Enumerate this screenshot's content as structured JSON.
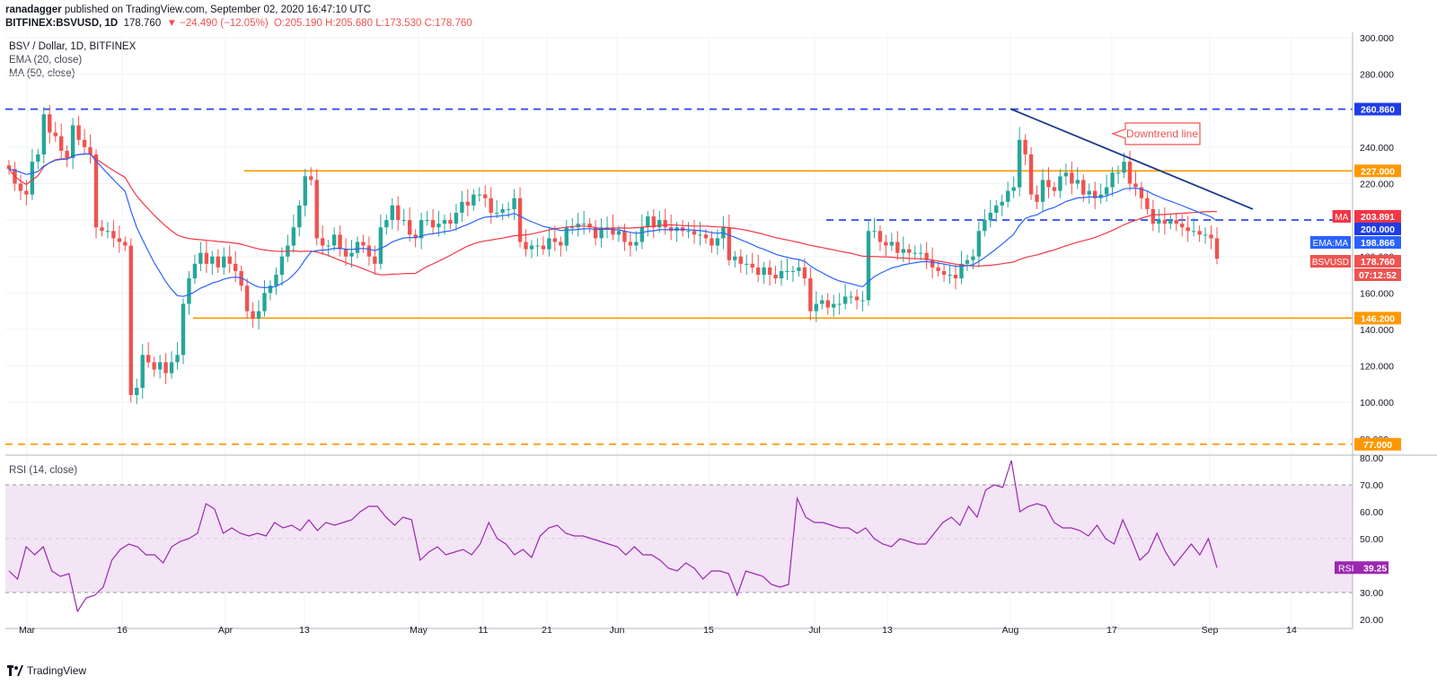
{
  "header": {
    "author": "ranadagger",
    "published_text": "published on TradingView.com, September 02, 2020 16:47:10 UTC",
    "symbol": "BITFINEX:BSVUSD, 1D",
    "last": "178.760",
    "change": "▼ −24.490 (−12.05%)",
    "ohlc": "O:205.190 H:205.680 L:173.530 C:178.760"
  },
  "legend": {
    "title": "BSV / Dollar, 1D, BITFINEX",
    "ema": "EMA (20, close)",
    "ma": "MA (50, close)",
    "rsi": "RSI (14, close)"
  },
  "annotation": {
    "text": "Downtrend line"
  },
  "colors": {
    "up": "#26a69a",
    "down": "#ef5350",
    "ema": "#2962ff",
    "ma": "#f23645",
    "support": "#ff9800",
    "resistance": "#1e3de8",
    "rsi": "#9c27b0"
  },
  "footer": {
    "brand": "TradingView"
  },
  "chart_data": {
    "type": "candlestick",
    "price_axis": {
      "ticks": [
        "300.000",
        "280.000",
        "260.000",
        "240.000",
        "220.000",
        "200.000",
        "180.000",
        "160.000",
        "140.000",
        "120.000",
        "100.000",
        "80.000"
      ],
      "range": [
        72,
        302
      ]
    },
    "rsi_axis": {
      "ticks": [
        "80.00",
        "70.00",
        "60.00",
        "50.00",
        "40.00",
        "30.00",
        "20.00"
      ],
      "range": [
        20,
        80
      ],
      "band": [
        30,
        70
      ]
    },
    "x_ticks": [
      "Mar",
      "16",
      "Apr",
      "13",
      "May",
      "11",
      "21",
      "Jun",
      "15",
      "Jul",
      "13",
      "Aug",
      "17",
      "Sep",
      "14"
    ],
    "levels": [
      {
        "label": "260.860",
        "value": 260.86,
        "style": "dashed",
        "color": "#1e3de8"
      },
      {
        "label": "227.000",
        "value": 227.0,
        "style": "solid",
        "color": "#ff9800"
      },
      {
        "label": "200.000",
        "value": 200.0,
        "style": "dashed",
        "color": "#1e3de8"
      },
      {
        "label": "146.200",
        "value": 146.2,
        "style": "solid",
        "color": "#ff9800"
      },
      {
        "label": "77.000",
        "value": 77.0,
        "style": "dashed",
        "color": "#ff9800"
      }
    ],
    "badges": [
      {
        "label": "MA",
        "value": "203.891",
        "price": 203.891,
        "color": "#f23645"
      },
      {
        "label": "",
        "value": "200.000",
        "price": 200.0,
        "color": "#1e3de8"
      },
      {
        "label": "EMA:MA",
        "value": "198.866",
        "price": 198.866,
        "color": "#2962ff"
      },
      {
        "label": "BSVUSD",
        "value": "178.760",
        "price": 178.76,
        "color": "#ef5350"
      },
      {
        "label": "",
        "value": "07:12:52",
        "price": 173.5,
        "color": "#ef5350"
      }
    ],
    "rsi_badge": {
      "label": "RSI",
      "value": "39.25"
    },
    "downtrend_line": {
      "from": [
        "Aug 1",
        261
      ],
      "to": [
        "Sep 10",
        206
      ]
    },
    "close": [
      228,
      220,
      216,
      214,
      232,
      236,
      258,
      248,
      246,
      238,
      234,
      252,
      244,
      240,
      236,
      196,
      194,
      194,
      190,
      188,
      186,
      104,
      108,
      126,
      122,
      118,
      122,
      116,
      122,
      126,
      154,
      168,
      176,
      182,
      176,
      180,
      174,
      180,
      176,
      172,
      164,
      150,
      146,
      150,
      160,
      164,
      170,
      180,
      186,
      196,
      208,
      224,
      222,
      190,
      186,
      186,
      192,
      184,
      180,
      182,
      188,
      186,
      180,
      176,
      196,
      200,
      208,
      200,
      200,
      192,
      190,
      200,
      200,
      196,
      198,
      200,
      198,
      204,
      210,
      208,
      214,
      214,
      212,
      204,
      204,
      206,
      206,
      212,
      188,
      184,
      186,
      186,
      184,
      190,
      188,
      186,
      196,
      196,
      198,
      198,
      196,
      190,
      196,
      196,
      192,
      194,
      188,
      186,
      188,
      196,
      202,
      196,
      200,
      196,
      194,
      196,
      194,
      194,
      192,
      192,
      190,
      186,
      190,
      196,
      178,
      180,
      176,
      176,
      174,
      170,
      174,
      170,
      168,
      172,
      172,
      172,
      174,
      168,
      150,
      154,
      156,
      152,
      154,
      154,
      158,
      158,
      156,
      156,
      194,
      194,
      188,
      186,
      188,
      182,
      184,
      182,
      182,
      182,
      178,
      174,
      172,
      170,
      170,
      168,
      176,
      178,
      180,
      194,
      200,
      204,
      208,
      210,
      216,
      218,
      244,
      236,
      214,
      210,
      222,
      218,
      216,
      224,
      226,
      220,
      222,
      214,
      216,
      212,
      214,
      218,
      226,
      226,
      232,
      220,
      218,
      212,
      206,
      198,
      200,
      198,
      200,
      198,
      196,
      194,
      194,
      192,
      192,
      190,
      178.76
    ],
    "rsi": [
      38,
      35,
      47,
      44,
      47,
      38,
      36,
      37,
      23,
      28,
      29,
      32,
      42,
      46,
      48,
      47,
      44,
      44,
      41,
      47,
      49,
      50,
      52,
      63,
      61,
      52,
      54,
      52,
      51,
      52,
      51,
      56,
      54,
      55,
      53,
      57,
      53,
      56,
      55,
      56,
      57,
      60,
      62,
      62,
      58,
      55,
      58,
      57,
      42,
      45,
      47,
      44,
      45,
      46,
      44,
      48,
      56,
      50,
      48,
      44,
      46,
      43,
      51,
      54,
      55,
      52,
      51,
      51,
      50,
      49,
      48,
      47,
      44,
      47,
      44,
      44,
      42,
      39,
      38,
      41,
      39,
      35,
      38,
      38,
      37,
      29,
      38,
      37,
      36,
      33,
      32,
      33,
      65,
      58,
      56,
      56,
      55,
      54,
      54,
      52,
      54,
      50,
      48,
      47,
      50,
      49,
      48,
      48,
      52,
      56,
      58,
      55,
      62,
      58,
      68,
      70,
      69,
      79,
      60,
      62,
      63,
      62,
      56,
      54,
      54,
      53,
      51,
      55,
      50,
      48,
      57,
      50,
      42,
      45,
      52,
      45,
      40,
      44,
      48,
      44,
      50,
      39.25
    ]
  }
}
